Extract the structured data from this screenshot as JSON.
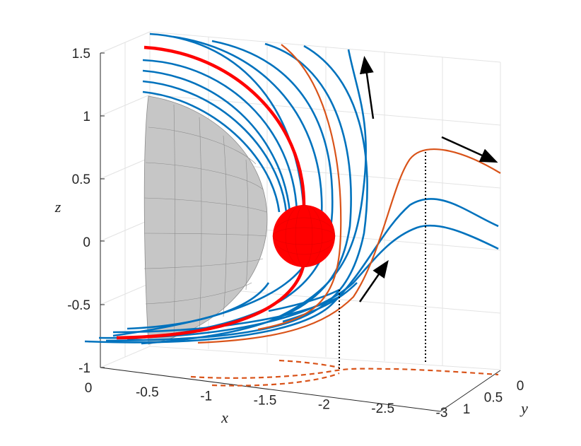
{
  "chart_data": {
    "type": "line",
    "title": "",
    "xlabel": "x",
    "ylabel": "y",
    "zlabel": "z",
    "xlim": [
      -3,
      0
    ],
    "ylim": [
      0,
      1
    ],
    "zlim": [
      -1,
      1.5
    ],
    "x_ticks": [
      "0",
      "-0.5",
      "-1",
      "-1.5",
      "-2",
      "-2.5",
      "-3"
    ],
    "y_ticks": [
      "0",
      "0.5",
      "1"
    ],
    "z_ticks": [
      "1.5",
      "1",
      "0.5",
      "0",
      "-0.5",
      "-1"
    ],
    "grid": true,
    "colors": {
      "blue_lines": "#0072BD",
      "orange_lines": "#D95319",
      "red_line": "#FF0000",
      "sphere": "#FF0000",
      "hemisphere": "#BDBDBD",
      "arrows": "#000000",
      "grid": "#E3E3E3"
    },
    "objects": [
      "hemisphere",
      "particle-sphere",
      "streamlines",
      "projected-paths",
      "flow-arrows"
    ]
  }
}
